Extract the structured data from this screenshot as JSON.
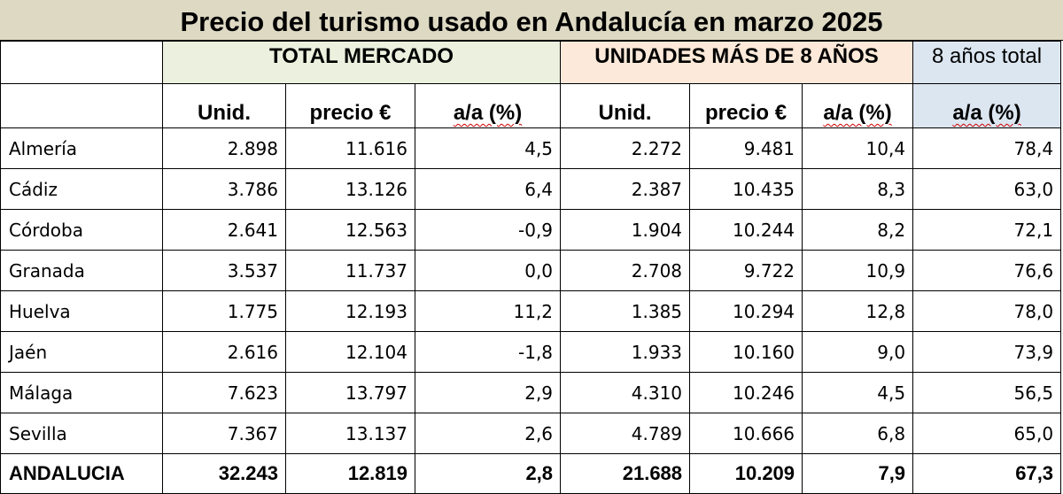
{
  "title": "Precio del turismo usado en Andalucía en marzo 2025",
  "groups": {
    "total_mercado": "TOTAL MERCADO",
    "mas_8_anos": "UNIDADES MÁS DE 8 AÑOS",
    "ocho_anos_total": "8 años total"
  },
  "headers": {
    "tm_unid": "Unid.",
    "tm_precio": "precio €",
    "tm_aa": "a/a (%)",
    "m8_unid": "Unid.",
    "m8_precio": "precio €",
    "m8_aa": "a/a (%)",
    "t8_aa": "a/a (%)"
  },
  "rows": [
    {
      "province": "Almería",
      "tm_unid": "2.898",
      "tm_precio": "11.616",
      "tm_aa": "4,5",
      "m8_unid": "2.272",
      "m8_precio": "9.481",
      "m8_aa": "10,4",
      "t8_aa": "78,4"
    },
    {
      "province": "Cádiz",
      "tm_unid": "3.786",
      "tm_precio": "13.126",
      "tm_aa": "6,4",
      "m8_unid": "2.387",
      "m8_precio": "10.435",
      "m8_aa": "8,3",
      "t8_aa": "63,0"
    },
    {
      "province": "Córdoba",
      "tm_unid": "2.641",
      "tm_precio": "12.563",
      "tm_aa": "-0,9",
      "m8_unid": "1.904",
      "m8_precio": "10.244",
      "m8_aa": "8,2",
      "t8_aa": "72,1"
    },
    {
      "province": "Granada",
      "tm_unid": "3.537",
      "tm_precio": "11.737",
      "tm_aa": "0,0",
      "m8_unid": "2.708",
      "m8_precio": "9.722",
      "m8_aa": "10,9",
      "t8_aa": "76,6"
    },
    {
      "province": "Huelva",
      "tm_unid": "1.775",
      "tm_precio": "12.193",
      "tm_aa": "11,2",
      "m8_unid": "1.385",
      "m8_precio": "10.294",
      "m8_aa": "12,8",
      "t8_aa": "78,0"
    },
    {
      "province": "Jaén",
      "tm_unid": "2.616",
      "tm_precio": "12.104",
      "tm_aa": "-1,8",
      "m8_unid": "1.933",
      "m8_precio": "10.160",
      "m8_aa": "9,0",
      "t8_aa": "73,9"
    },
    {
      "province": "Málaga",
      "tm_unid": "7.623",
      "tm_precio": "13.797",
      "tm_aa": "2,9",
      "m8_unid": "4.310",
      "m8_precio": "10.246",
      "m8_aa": "4,5",
      "t8_aa": "56,5"
    },
    {
      "province": "Sevilla",
      "tm_unid": "7.367",
      "tm_precio": "13.137",
      "tm_aa": "2,6",
      "m8_unid": "4.789",
      "m8_precio": "10.666",
      "m8_aa": "6,8",
      "t8_aa": "65,0"
    },
    {
      "province": "ANDALUCIA",
      "tm_unid": "32.243",
      "tm_precio": "12.819",
      "tm_aa": "2,8",
      "m8_unid": "21.688",
      "m8_precio": "10.209",
      "m8_aa": "7,9",
      "t8_aa": "67,3"
    }
  ],
  "colors": {
    "title_bg": "#ddd9c3",
    "total_mercado_bg": "#ebf1de",
    "mas_8_anos_bg": "#fde9d9",
    "ocho_anos_total_bg": "#dce6f1"
  }
}
